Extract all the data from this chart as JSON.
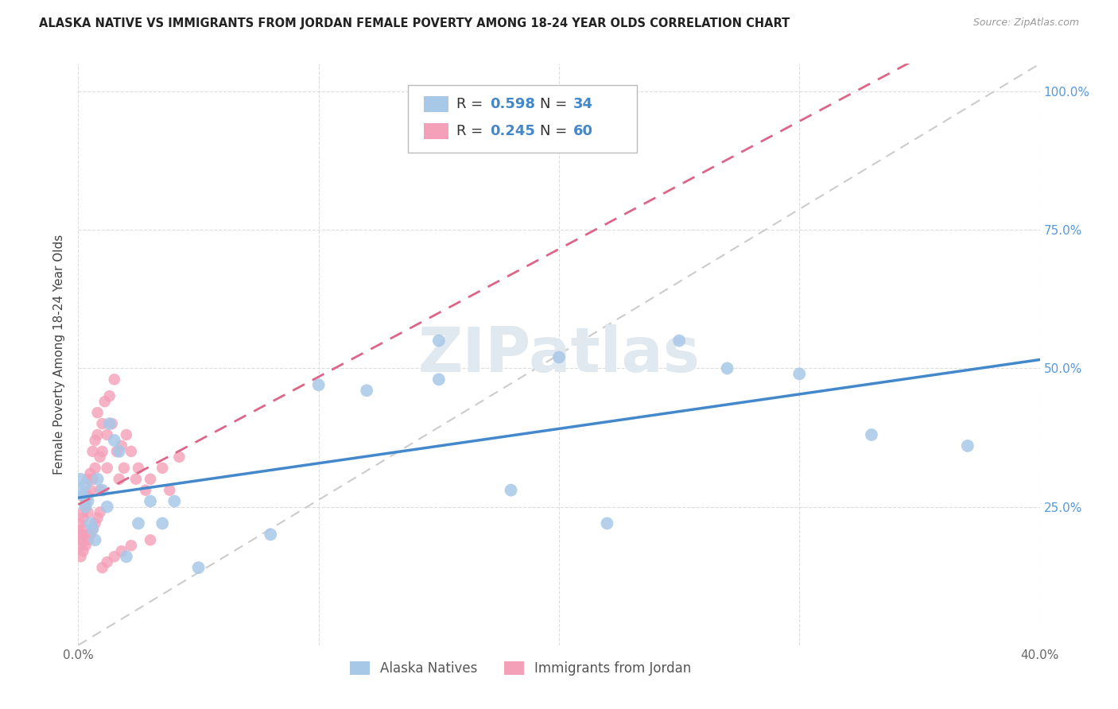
{
  "title": "ALASKA NATIVE VS IMMIGRANTS FROM JORDAN FEMALE POVERTY AMONG 18-24 YEAR OLDS CORRELATION CHART",
  "source": "Source: ZipAtlas.com",
  "ylabel": "Female Poverty Among 18-24 Year Olds",
  "xlim": [
    0.0,
    0.4
  ],
  "ylim": [
    0.0,
    1.05
  ],
  "xticks": [
    0.0,
    0.1,
    0.2,
    0.3,
    0.4
  ],
  "xticklabels": [
    "0.0%",
    "",
    "",
    "",
    "40.0%"
  ],
  "yticks": [
    0.0,
    0.25,
    0.5,
    0.75,
    1.0
  ],
  "yticklabels": [
    "",
    "25.0%",
    "50.0%",
    "75.0%",
    "100.0%"
  ],
  "alaska_color": "#a8c8e8",
  "jordan_color": "#f4a0b8",
  "alaska_R": 0.598,
  "alaska_N": 34,
  "jordan_R": 0.245,
  "jordan_N": 60,
  "alaska_line_color": "#4488cc",
  "jordan_line_color": "#dd6688",
  "diagonal_color": "#cccccc",
  "background_color": "#ffffff",
  "grid_color": "#dddddd",
  "watermark": "ZIPatlas",
  "alaska_x": [
    0.001,
    0.001,
    0.002,
    0.003,
    0.003,
    0.004,
    0.005,
    0.006,
    0.007,
    0.008,
    0.01,
    0.012,
    0.013,
    0.015,
    0.017,
    0.02,
    0.025,
    0.03,
    0.035,
    0.04,
    0.05,
    0.08,
    0.1,
    0.12,
    0.15,
    0.18,
    0.22,
    0.27,
    0.3,
    0.33,
    0.37,
    0.15,
    0.2,
    0.25
  ],
  "alaska_y": [
    0.28,
    0.3,
    0.27,
    0.25,
    0.29,
    0.26,
    0.22,
    0.21,
    0.19,
    0.3,
    0.28,
    0.25,
    0.4,
    0.37,
    0.35,
    0.16,
    0.22,
    0.26,
    0.22,
    0.26,
    0.14,
    0.2,
    0.47,
    0.46,
    0.48,
    0.28,
    0.22,
    0.5,
    0.49,
    0.38,
    0.36,
    0.55,
    0.52,
    0.55
  ],
  "jordan_x": [
    0.001,
    0.001,
    0.001,
    0.001,
    0.002,
    0.002,
    0.002,
    0.002,
    0.003,
    0.003,
    0.003,
    0.004,
    0.004,
    0.004,
    0.005,
    0.005,
    0.006,
    0.006,
    0.007,
    0.007,
    0.008,
    0.008,
    0.009,
    0.009,
    0.01,
    0.01,
    0.011,
    0.012,
    0.012,
    0.013,
    0.014,
    0.015,
    0.016,
    0.017,
    0.018,
    0.019,
    0.02,
    0.022,
    0.024,
    0.025,
    0.028,
    0.03,
    0.035,
    0.038,
    0.042,
    0.001,
    0.002,
    0.003,
    0.004,
    0.005,
    0.006,
    0.007,
    0.008,
    0.009,
    0.01,
    0.012,
    0.015,
    0.018,
    0.022,
    0.03
  ],
  "jordan_y": [
    0.2,
    0.22,
    0.19,
    0.18,
    0.24,
    0.23,
    0.21,
    0.2,
    0.27,
    0.26,
    0.25,
    0.3,
    0.27,
    0.24,
    0.31,
    0.28,
    0.35,
    0.3,
    0.37,
    0.32,
    0.42,
    0.38,
    0.34,
    0.28,
    0.4,
    0.35,
    0.44,
    0.38,
    0.32,
    0.45,
    0.4,
    0.48,
    0.35,
    0.3,
    0.36,
    0.32,
    0.38,
    0.35,
    0.3,
    0.32,
    0.28,
    0.3,
    0.32,
    0.28,
    0.34,
    0.16,
    0.17,
    0.18,
    0.19,
    0.2,
    0.21,
    0.22,
    0.23,
    0.24,
    0.14,
    0.15,
    0.16,
    0.17,
    0.18,
    0.19
  ],
  "legend_label_alaska": "R = 0.598   N = 34",
  "legend_label_jordan": "R = 0.245   N = 60",
  "bottom_legend_alaska": "Alaska Natives",
  "bottom_legend_jordan": "Immigrants from Jordan"
}
